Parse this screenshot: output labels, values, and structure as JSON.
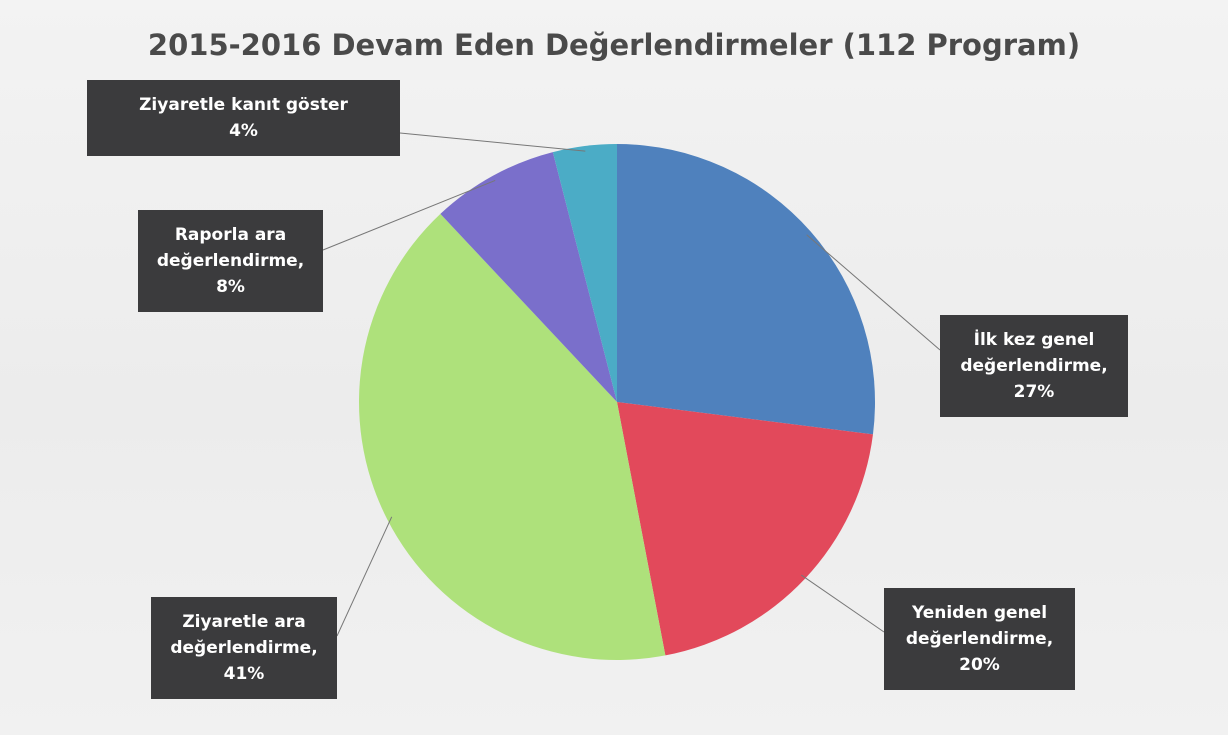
{
  "chart_data": {
    "type": "pie",
    "title": "2015-2016 Devam Eden Değerlendirmeler (112 Program)",
    "categories": [
      "İlk kez genel değerlendirme,",
      "Yeniden genel değerlendirme,",
      "Ziyaretle ara değerlendirme,",
      "Raporla ara değerlendirme,",
      "Ziyaretle kanıt göster"
    ],
    "values": [
      27,
      20,
      41,
      8,
      4
    ],
    "value_labels": [
      "27%",
      "20%",
      "41%",
      "8%",
      "4%"
    ],
    "colors": [
      "#4f81bd",
      "#e2495b",
      "#aee17b",
      "#7a6fcb",
      "#4bacc6"
    ]
  }
}
